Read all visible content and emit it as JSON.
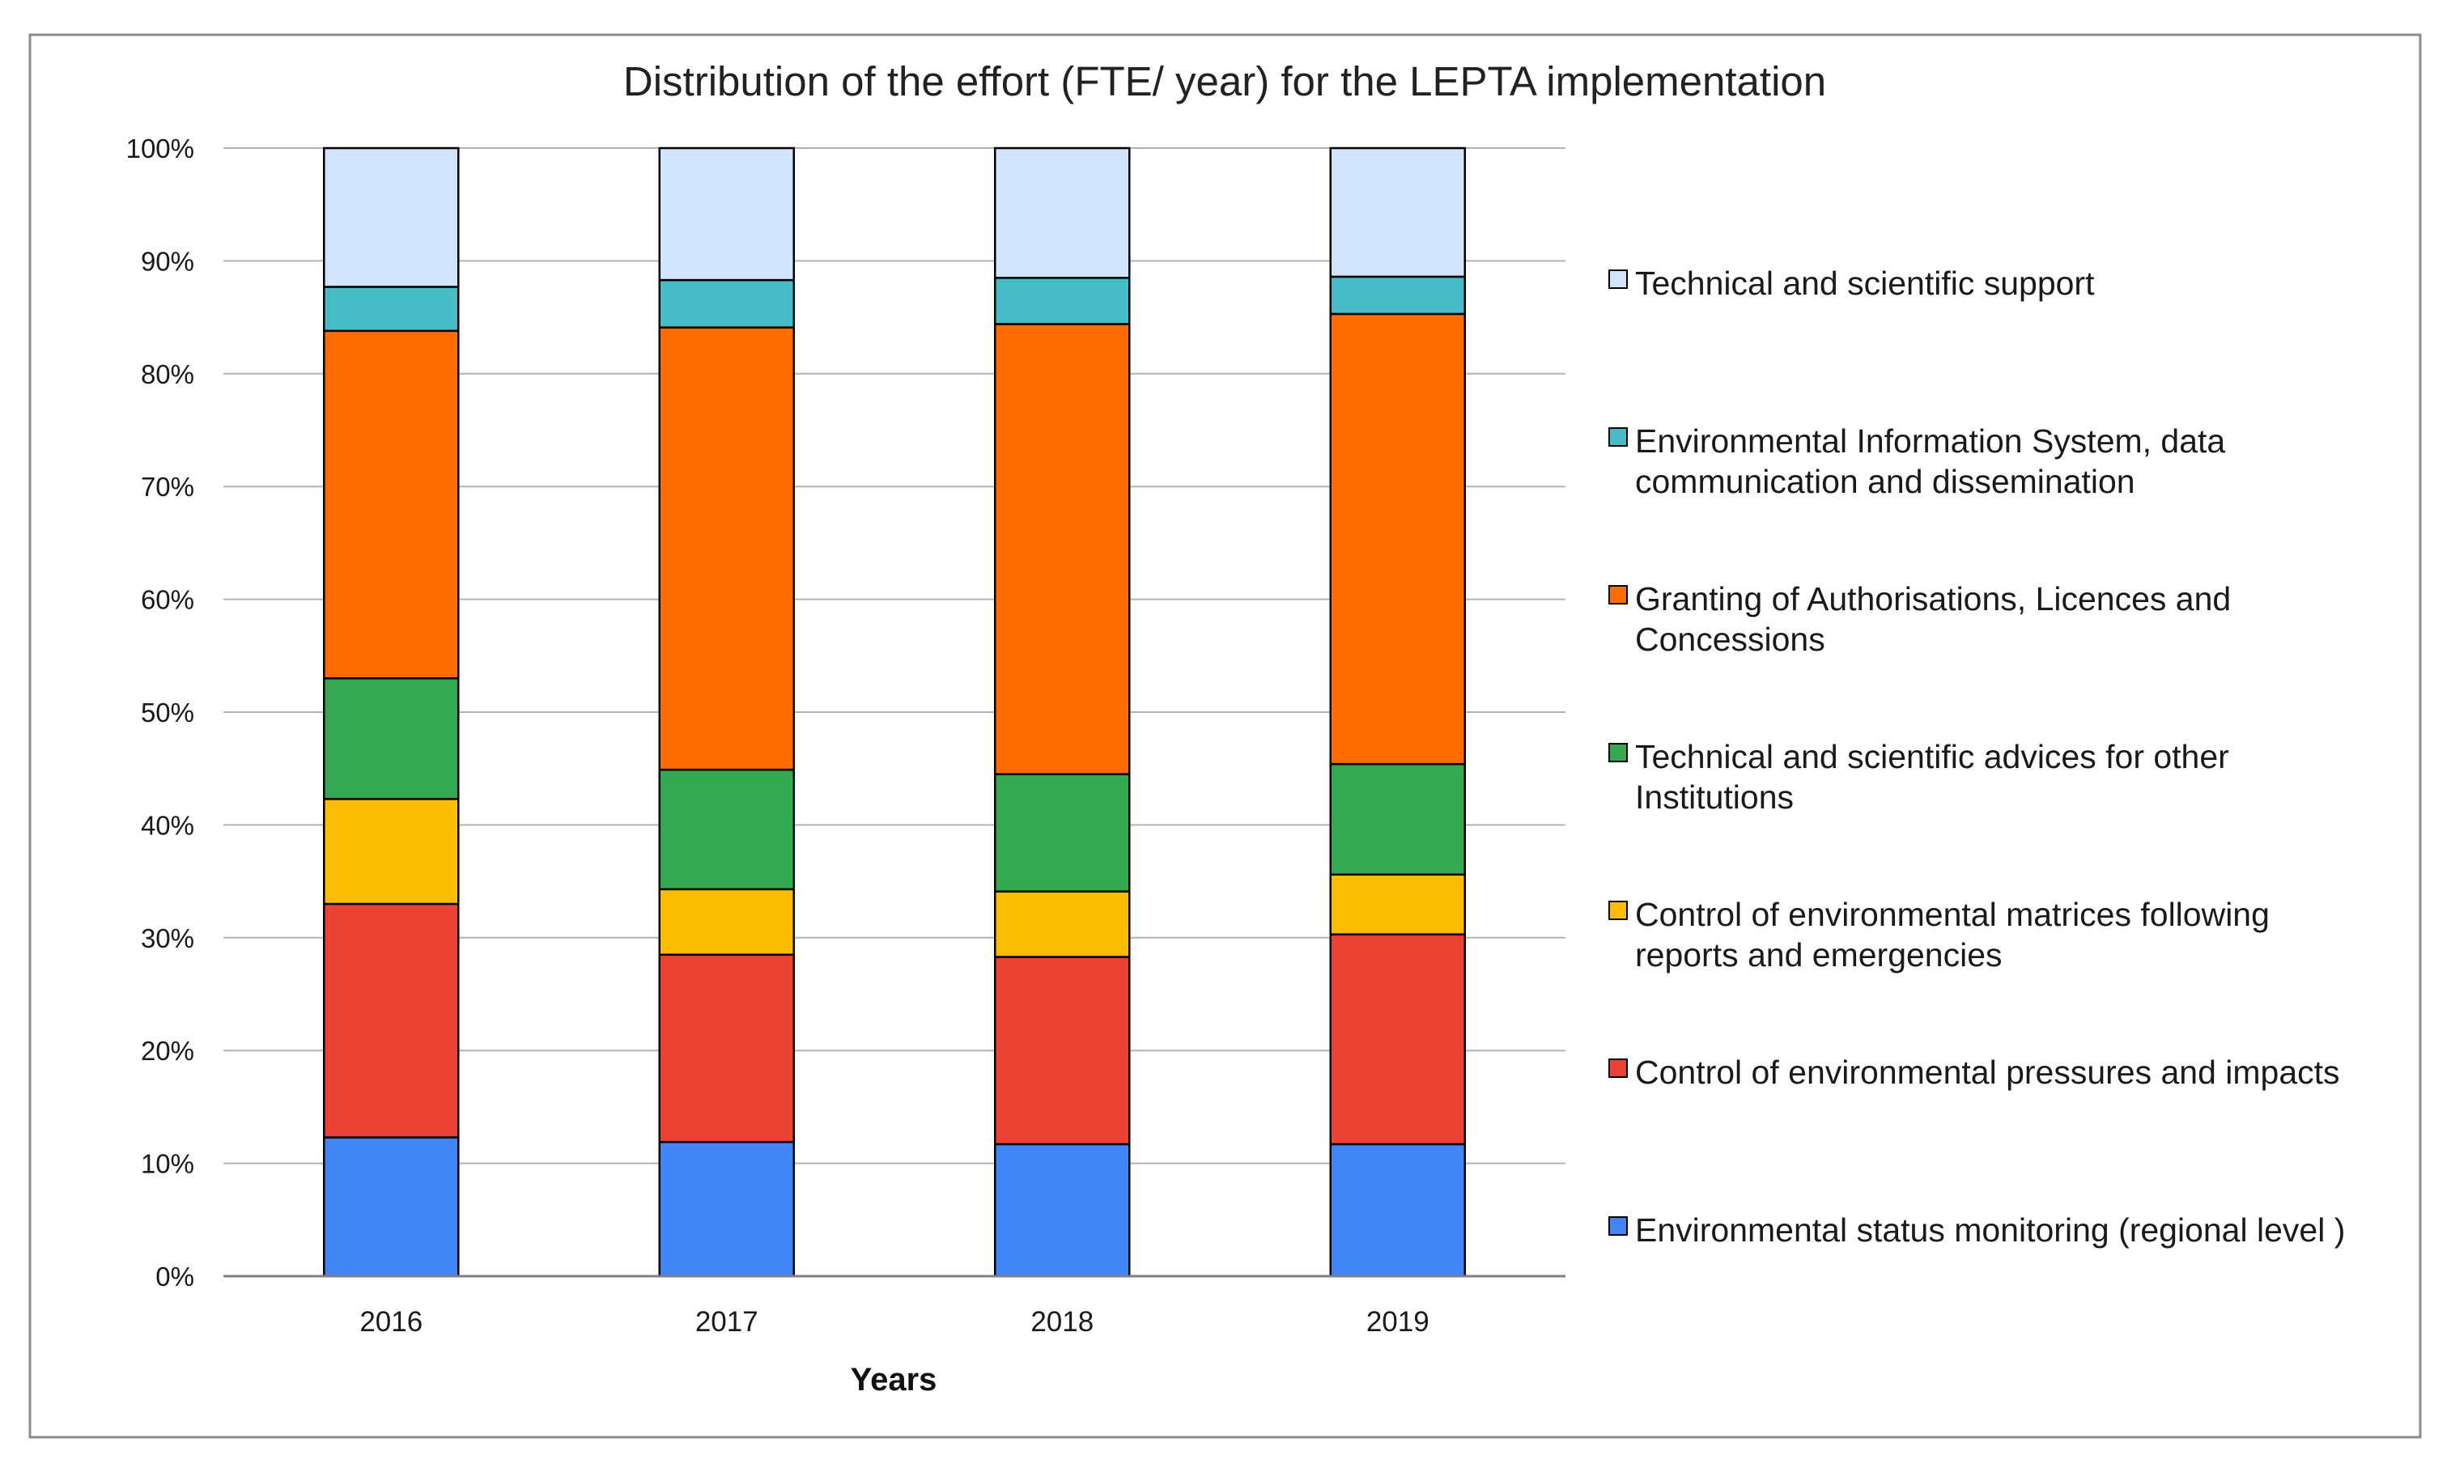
{
  "chart_data": {
    "type": "bar",
    "stacked": true,
    "title": "Distribution of the effort (FTE/ year) for  the LEPTA  implementation",
    "xlabel": "Years",
    "ylabel": "",
    "ylim": [
      0,
      100
    ],
    "y_ticks": [
      0,
      10,
      20,
      30,
      40,
      50,
      60,
      70,
      80,
      90,
      100
    ],
    "y_tick_labels": [
      "0%",
      "10%",
      "20%",
      "30%",
      "40%",
      "50%",
      "60%",
      "70%",
      "80%",
      "90%",
      "100%"
    ],
    "categories": [
      "2016",
      "2017",
      "2018",
      "2019"
    ],
    "grid": true,
    "legend_position": "right",
    "series": [
      {
        "name": "Environmental status monitoring (regional level )",
        "color": "#4285f4",
        "values": [
          12.3,
          11.9,
          11.7,
          11.7
        ]
      },
      {
        "name": "Control of environmental pressures and impacts",
        "color": "#ea4335",
        "values": [
          20.7,
          16.6,
          16.6,
          18.6
        ]
      },
      {
        "name": "Control of environmental matrices following reports and emergencies",
        "color": "#fbbc04",
        "values": [
          9.3,
          5.8,
          5.8,
          5.3
        ]
      },
      {
        "name": "Technical and scientific advices  for other Institutions",
        "color": "#34a853",
        "values": [
          10.7,
          10.6,
          10.4,
          9.8
        ]
      },
      {
        "name": "Granting of Authorisations, Licences  and Concessions",
        "color": "#ff6d01",
        "values": [
          30.8,
          39.2,
          39.9,
          39.9
        ]
      },
      {
        "name": "Environmental Information System, data communication and dissemination",
        "color": "#46bdc6",
        "values": [
          3.9,
          4.2,
          4.1,
          3.3
        ]
      },
      {
        "name": "Technical and scientific support",
        "color": "#d2e3fc",
        "values": [
          12.3,
          11.7,
          11.5,
          11.4
        ]
      }
    ],
    "legend": [
      {
        "lines": [
          "Technical and scientific support"
        ],
        "color": "#d2e3fc"
      },
      {
        "lines": [
          "Environmental Information System, data",
          "communication and dissemination"
        ],
        "color": "#46bdc6"
      },
      {
        "lines": [
          "Granting of Authorisations, Licences  and",
          "Concessions"
        ],
        "color": "#ff6d01"
      },
      {
        "lines": [
          "Technical and scientific advices  for other",
          "Institutions"
        ],
        "color": "#34a853"
      },
      {
        "lines": [
          "Control of environmental matrices following",
          "reports and emergencies"
        ],
        "color": "#fbbc04"
      },
      {
        "lines": [
          "Control of environmental pressures and impacts"
        ],
        "color": "#ea4335"
      },
      {
        "lines": [
          "Environmental status monitoring (regional level )"
        ],
        "color": "#4285f4"
      }
    ]
  }
}
